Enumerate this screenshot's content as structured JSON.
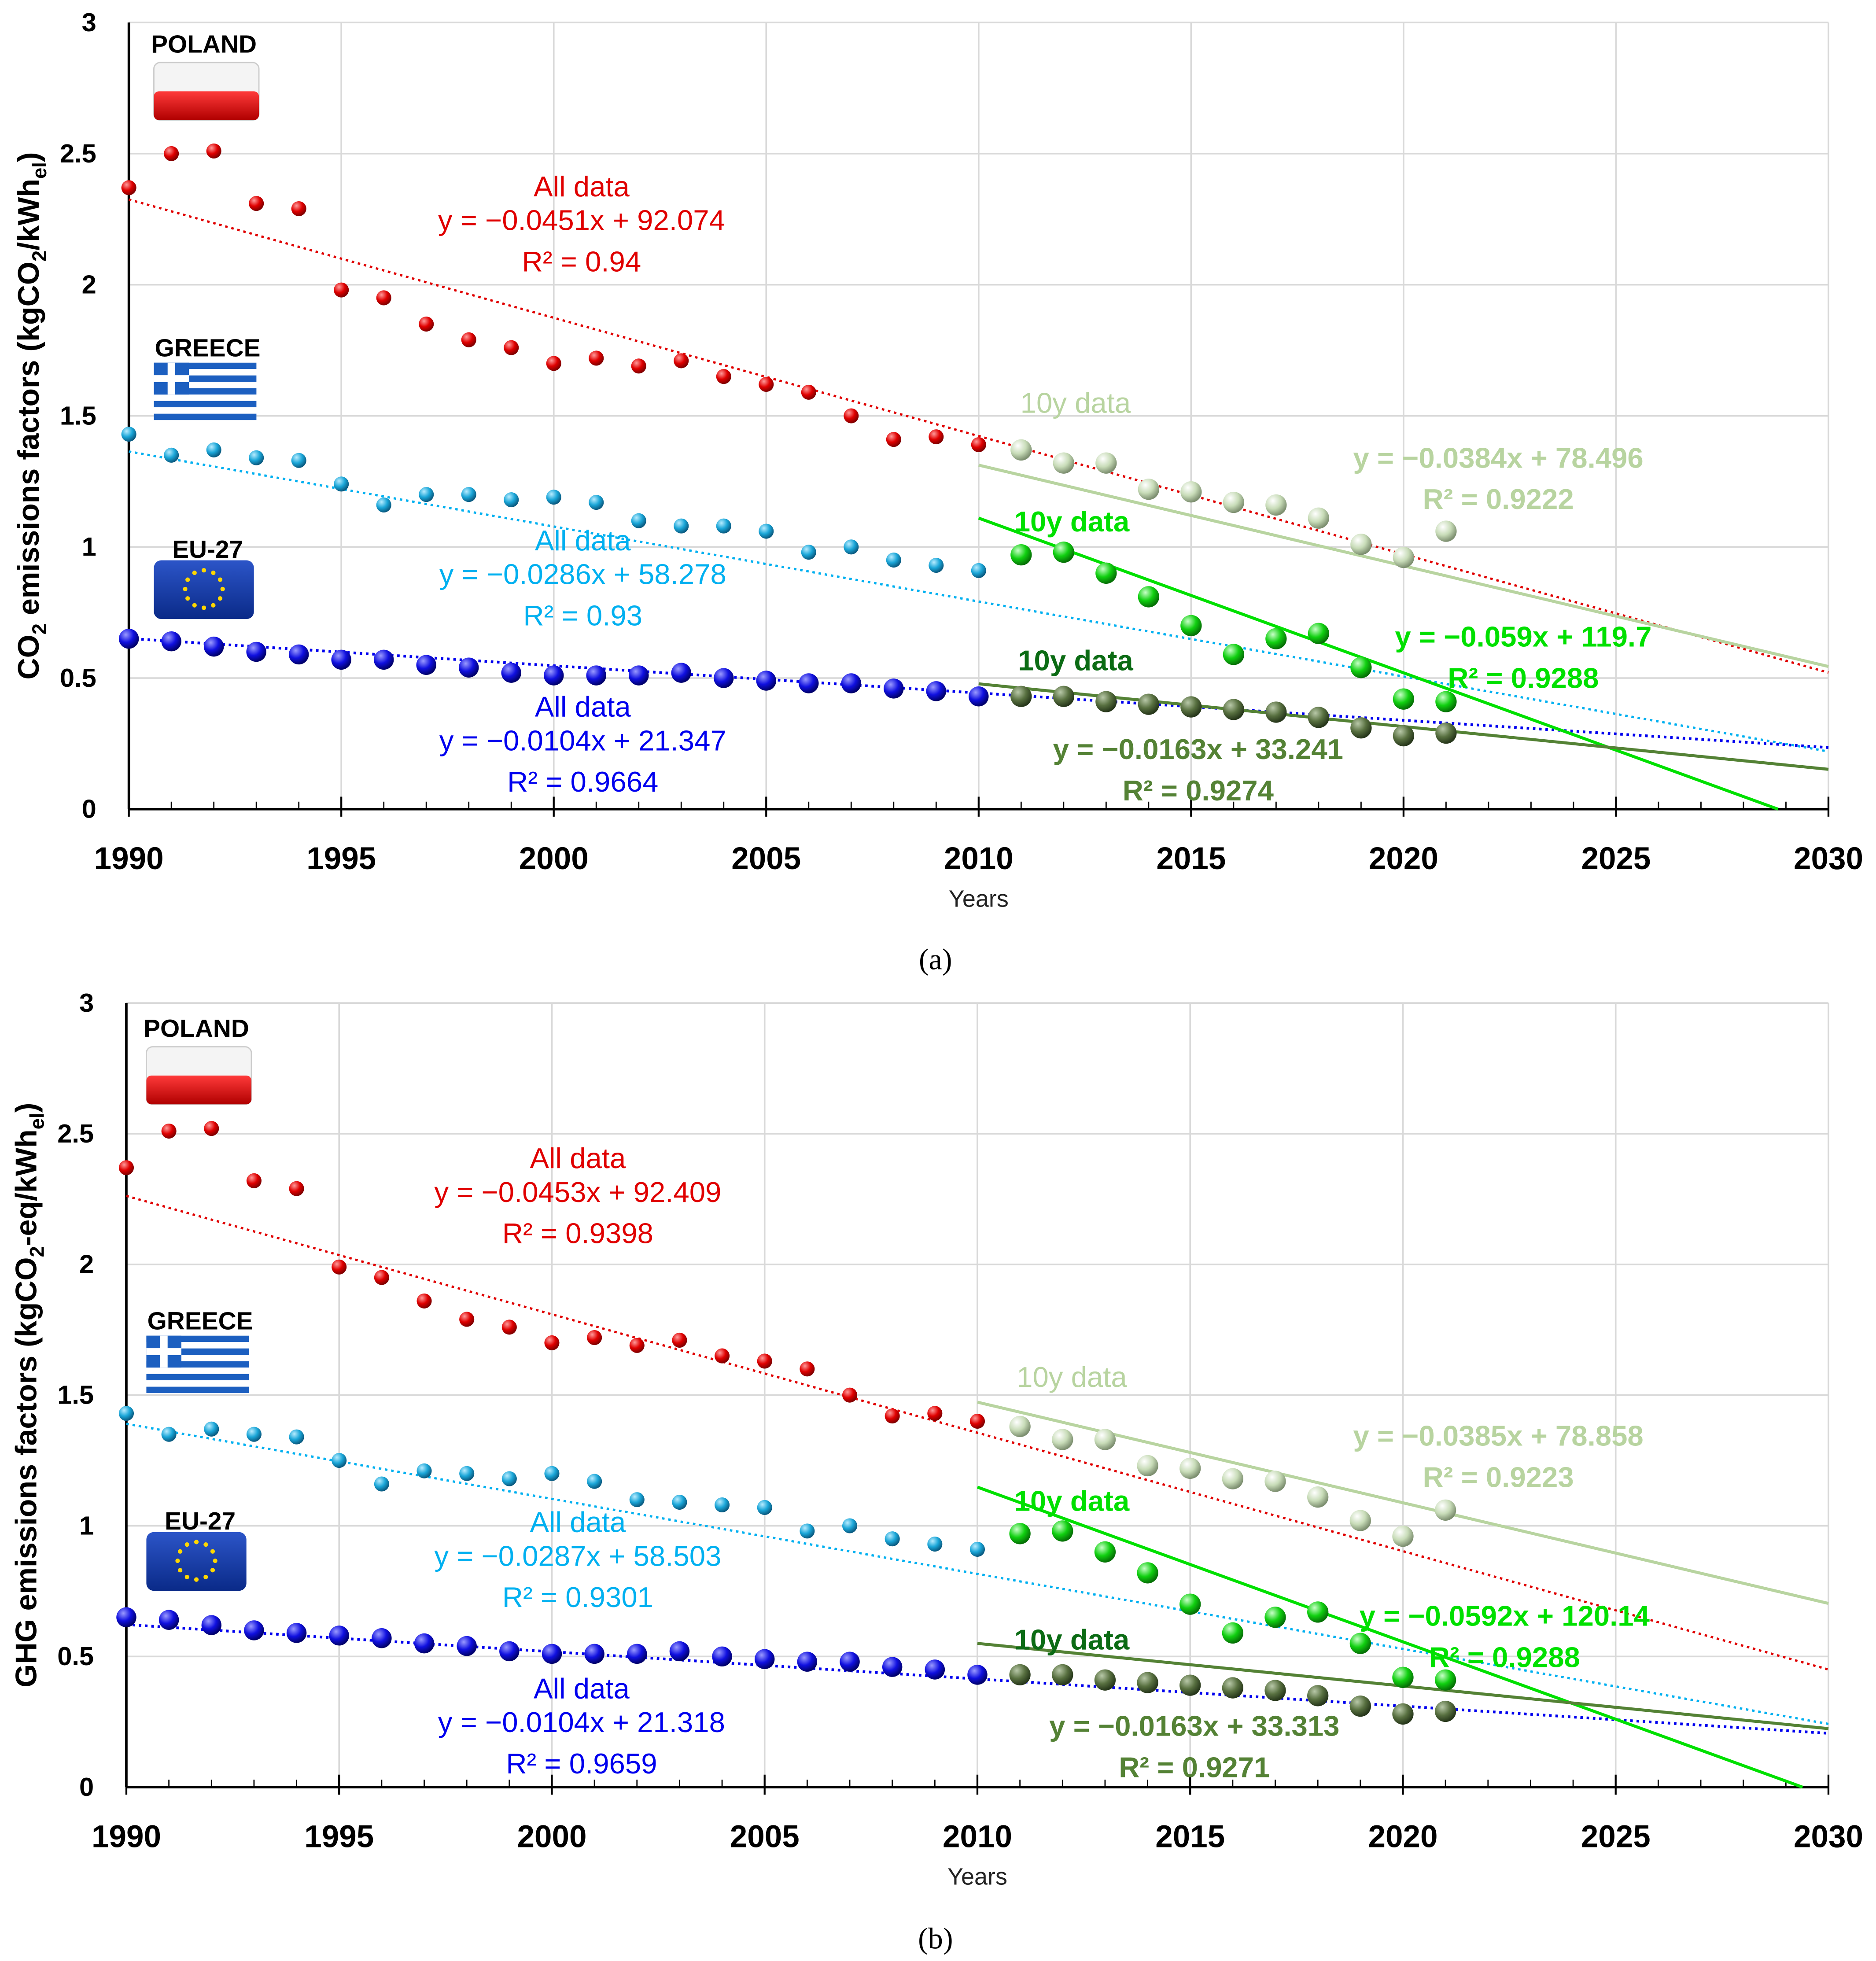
{
  "chart_data": [
    {
      "id": "a",
      "type": "scatter",
      "caption": "(a)",
      "ylabel": "CO2 emissions factors (kgCO2/kWhel)",
      "ylabel_parts": {
        "pre": "CO",
        "sub1": "2",
        "mid": " emissions factors (kgCO",
        "sub2": "2",
        "mid2": "/kWh",
        "sub3": "el",
        "post": ")"
      },
      "xlabel": "Years",
      "xlim": [
        1990,
        2030
      ],
      "ylim": [
        0,
        3
      ],
      "xticks": [
        "1990",
        "1995",
        "2000",
        "2005",
        "2010",
        "2015",
        "2020",
        "2025",
        "2030"
      ],
      "yticks": [
        "0",
        "0.5",
        "1",
        "1.5",
        "2",
        "2.5",
        "3"
      ],
      "grid": true,
      "x": [
        1990,
        1991,
        1992,
        1993,
        1994,
        1995,
        1996,
        1997,
        1998,
        1999,
        2000,
        2001,
        2002,
        2003,
        2004,
        2005,
        2006,
        2007,
        2008,
        2009,
        2010,
        2011,
        2012,
        2013,
        2014,
        2015,
        2016,
        2017,
        2018,
        2019,
        2020,
        2021
      ],
      "series": [
        {
          "name": "Poland",
          "label": "POLAND",
          "values": [
            2.37,
            2.5,
            2.51,
            2.31,
            2.29,
            1.98,
            1.95,
            1.85,
            1.79,
            1.76,
            1.7,
            1.72,
            1.69,
            1.71,
            1.65,
            1.62,
            1.59,
            1.5,
            1.41,
            1.42,
            1.39,
            1.37,
            1.32,
            1.32,
            1.22,
            1.21,
            1.17,
            1.16,
            1.11,
            1.01,
            0.96,
            1.06
          ]
        },
        {
          "name": "Greece",
          "label": "GREECE",
          "values": [
            1.43,
            1.35,
            1.37,
            1.34,
            1.33,
            1.24,
            1.16,
            1.2,
            1.2,
            1.18,
            1.19,
            1.17,
            1.1,
            1.08,
            1.08,
            1.06,
            0.98,
            1.0,
            0.95,
            0.93,
            0.91,
            0.97,
            0.98,
            0.9,
            0.81,
            0.7,
            0.59,
            0.65,
            0.67,
            0.54,
            0.42,
            0.41
          ]
        },
        {
          "name": "EU-27",
          "label": "EU-27",
          "values": [
            0.65,
            0.64,
            0.62,
            0.6,
            0.59,
            0.57,
            0.57,
            0.55,
            0.54,
            0.52,
            0.51,
            0.51,
            0.51,
            0.52,
            0.5,
            0.49,
            0.48,
            0.48,
            0.46,
            0.45,
            0.43,
            0.43,
            0.43,
            0.41,
            0.4,
            0.39,
            0.38,
            0.37,
            0.35,
            0.31,
            0.28,
            0.29
          ]
        }
      ],
      "trendlines": [
        {
          "series": "Poland",
          "kind": "all",
          "title": "All data",
          "slope": -0.0451,
          "intercept": 92.074,
          "equation": "y = −0.0451x + 92.074",
          "r2": "R² = 0.94"
        },
        {
          "series": "Greece",
          "kind": "all",
          "title": "All data",
          "slope": -0.0286,
          "intercept": 58.278,
          "equation": "y = −0.0286x + 58.278",
          "r2": "R² = 0.93"
        },
        {
          "series": "EU-27",
          "kind": "all",
          "title": "All data",
          "slope": -0.0104,
          "intercept": 21.347,
          "equation": "y = −0.0104x + 21.347",
          "r2": "R² = 0.9664"
        },
        {
          "series": "Poland",
          "kind": "10y",
          "title": "10y data",
          "slope": -0.0384,
          "intercept": 78.496,
          "equation": "y = −0.0384x + 78.496",
          "r2": "R² = 0.9222"
        },
        {
          "series": "Greece",
          "kind": "10y",
          "title": "10y data",
          "slope": -0.059,
          "intercept": 119.7,
          "equation": "y = −0.059x + 119.7",
          "r2": "R² = 0.9288"
        },
        {
          "series": "EU-27",
          "kind": "10y",
          "title": "10y data",
          "slope": -0.0163,
          "intercept": 33.241,
          "equation": "y = −0.0163x + 33.241",
          "r2": "R² = 0.9274"
        }
      ]
    },
    {
      "id": "b",
      "type": "scatter",
      "caption": "(b)",
      "ylabel": "GHG emissions factors (kgCO2-eq/kWhel)",
      "ylabel_parts": {
        "pre": "GHG emissions factors (kgCO",
        "sub1": "2",
        "mid": "-eq/kWh",
        "sub2": "el",
        "mid2": "",
        "sub3": "",
        "post": ")"
      },
      "xlabel": "Years",
      "xlim": [
        1990,
        2030
      ],
      "ylim": [
        0,
        3
      ],
      "xticks": [
        "1990",
        "1995",
        "2000",
        "2005",
        "2010",
        "2015",
        "2020",
        "2025",
        "2030"
      ],
      "yticks": [
        "0",
        "0.5",
        "1",
        "1.5",
        "2",
        "2.5",
        "3"
      ],
      "grid": true,
      "x": [
        1990,
        1991,
        1992,
        1993,
        1994,
        1995,
        1996,
        1997,
        1998,
        1999,
        2000,
        2001,
        2002,
        2003,
        2004,
        2005,
        2006,
        2007,
        2008,
        2009,
        2010,
        2011,
        2012,
        2013,
        2014,
        2015,
        2016,
        2017,
        2018,
        2019,
        2020,
        2021
      ],
      "series": [
        {
          "name": "Poland",
          "label": "POLAND",
          "values": [
            2.37,
            2.51,
            2.52,
            2.32,
            2.29,
            1.99,
            1.95,
            1.86,
            1.79,
            1.76,
            1.7,
            1.72,
            1.69,
            1.71,
            1.65,
            1.63,
            1.6,
            1.5,
            1.42,
            1.43,
            1.4,
            1.38,
            1.33,
            1.33,
            1.23,
            1.22,
            1.18,
            1.17,
            1.11,
            1.02,
            0.96,
            1.06
          ]
        },
        {
          "name": "Greece",
          "label": "GREECE",
          "values": [
            1.43,
            1.35,
            1.37,
            1.35,
            1.34,
            1.25,
            1.16,
            1.21,
            1.2,
            1.18,
            1.2,
            1.17,
            1.1,
            1.09,
            1.08,
            1.07,
            0.98,
            1.0,
            0.95,
            0.93,
            0.91,
            0.97,
            0.98,
            0.9,
            0.82,
            0.7,
            0.59,
            0.65,
            0.67,
            0.55,
            0.42,
            0.41
          ]
        },
        {
          "name": "EU-27",
          "label": "EU-27",
          "values": [
            0.65,
            0.64,
            0.62,
            0.6,
            0.59,
            0.58,
            0.57,
            0.55,
            0.54,
            0.52,
            0.51,
            0.51,
            0.51,
            0.52,
            0.5,
            0.49,
            0.48,
            0.48,
            0.46,
            0.45,
            0.43,
            0.43,
            0.43,
            0.41,
            0.4,
            0.39,
            0.38,
            0.37,
            0.35,
            0.31,
            0.28,
            0.29
          ]
        }
      ],
      "trendlines": [
        {
          "series": "Poland",
          "kind": "all",
          "title": "All data",
          "slope": -0.0453,
          "intercept": 92.409,
          "equation": "y = −0.0453x + 92.409",
          "r2": "R² = 0.9398"
        },
        {
          "series": "Greece",
          "kind": "all",
          "title": "All data",
          "slope": -0.0287,
          "intercept": 58.503,
          "equation": "y = −0.0287x + 58.503",
          "r2": "R² = 0.9301"
        },
        {
          "series": "EU-27",
          "kind": "all",
          "title": "All data",
          "slope": -0.0104,
          "intercept": 21.318,
          "equation": "y = −0.0104x + 21.318",
          "r2": "R² = 0.9659"
        },
        {
          "series": "Poland",
          "kind": "10y",
          "title": "10y data",
          "slope": -0.0385,
          "intercept": 78.858,
          "equation": "y = −0.0385x + 78.858",
          "r2": "R² = 0.9223"
        },
        {
          "series": "Greece",
          "kind": "10y",
          "title": "10y data",
          "slope": -0.0592,
          "intercept": 120.14,
          "equation": "y = −0.0592x + 120.14",
          "r2": "R² = 0.9288"
        },
        {
          "series": "EU-27",
          "kind": "10y",
          "title": "10y data",
          "slope": -0.0163,
          "intercept": 33.313,
          "equation": "y = −0.0163x + 33.313",
          "r2": "R² = 0.9271"
        }
      ]
    }
  ],
  "colors": {
    "poland_all": "#e00000",
    "poland_10y": "#b8d4a0",
    "greece_all": "#00b0f0",
    "greece_10y": "#00e000",
    "eu_all": "#0000ee",
    "eu_10y": "#548235",
    "eu_10y_title": "#0b6b14"
  }
}
